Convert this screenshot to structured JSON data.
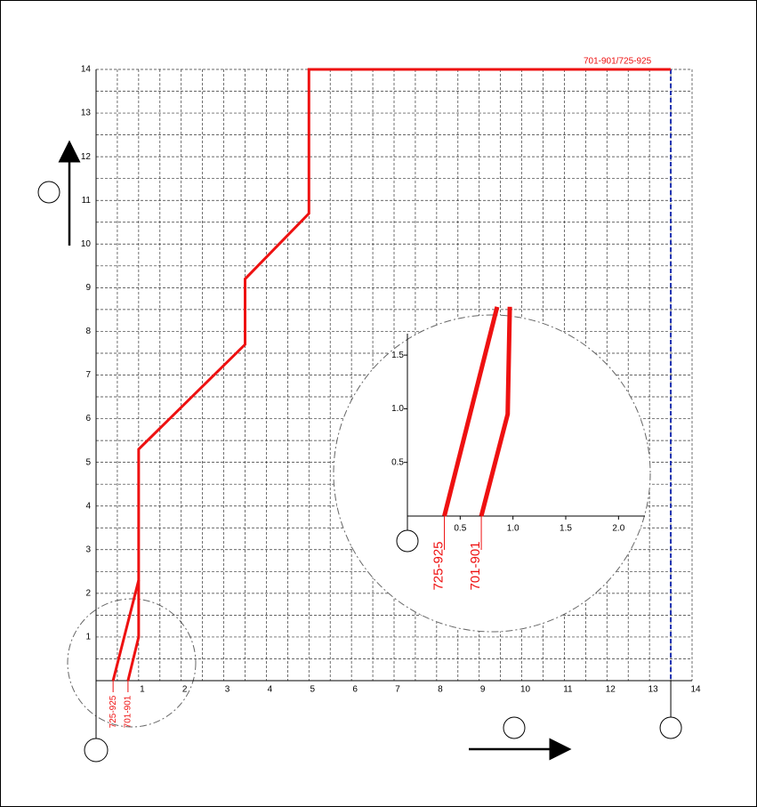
{
  "main": {
    "xlim": [
      0,
      14
    ],
    "ylim": [
      0,
      14
    ],
    "xticks": [
      1,
      2,
      3,
      4,
      5,
      6,
      7,
      8,
      9,
      10,
      11,
      12,
      13,
      14
    ],
    "yticks": [
      1,
      2,
      3,
      4,
      5,
      6,
      7,
      8,
      9,
      10,
      11,
      12,
      13,
      14
    ],
    "top_label": "701-901/725-925",
    "end_x": 13.5,
    "paths": [
      {
        "name": "725-925",
        "color": "#ee1111",
        "x": [
          0.4,
          1,
          1,
          3.5,
          3.5,
          5,
          5,
          13.5
        ],
        "y": [
          0,
          2.3,
          5.3,
          7.7,
          9.2,
          10.7,
          14,
          14
        ]
      },
      {
        "name": "701-901",
        "color": "#ee1111",
        "x": [
          0.75,
          1,
          1
        ],
        "y": [
          0,
          1,
          2.3
        ]
      }
    ]
  },
  "inset": {
    "xlim": [
      0,
      2.25
    ],
    "ylim": [
      0,
      1.7
    ],
    "xticks": [
      0.5,
      {
        "value": 1.0,
        "label": "1.0"
      },
      1.5,
      {
        "value": 2.0,
        "label": "2.0"
      }
    ],
    "yticks": [
      0.5,
      {
        "value": 1.0,
        "label": "1.0"
      },
      1.5
    ],
    "paths": [
      {
        "name": "725-925",
        "color": "#ee1111",
        "x": [
          0.35,
          0.85
        ],
        "y": [
          0,
          1.95
        ]
      },
      {
        "name": "701-901",
        "color": "#ee1111",
        "x": [
          0.7,
          0.95,
          0.97
        ],
        "y": [
          0,
          0.95,
          1.95
        ]
      }
    ]
  }
}
